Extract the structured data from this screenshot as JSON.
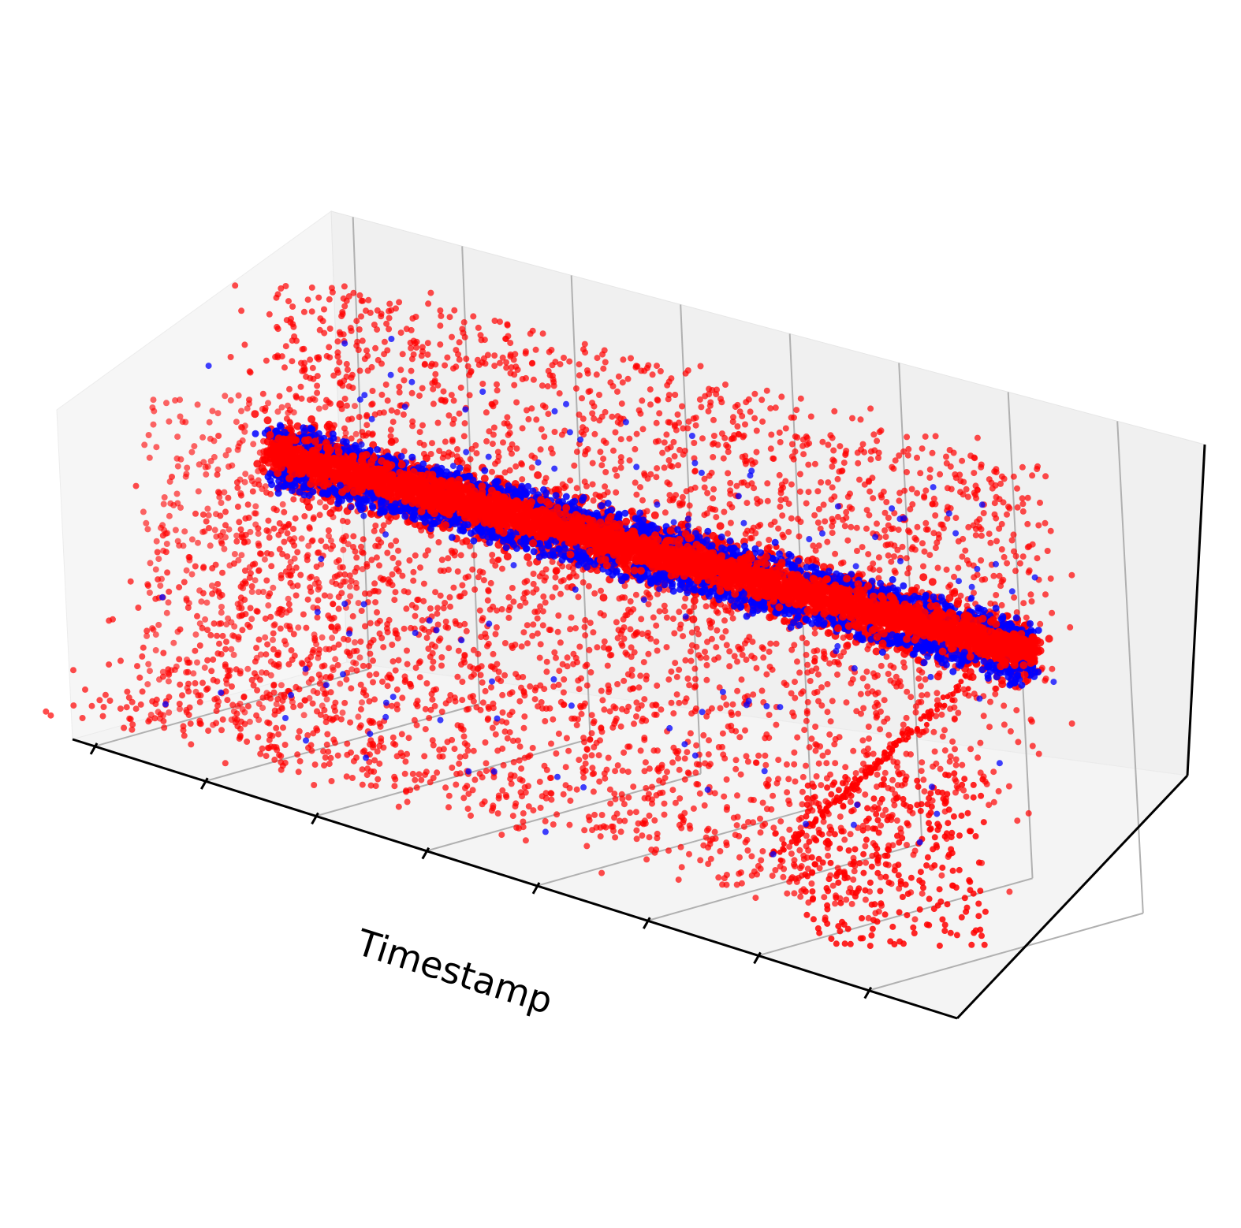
{
  "chart_data": {
    "type": "scatter",
    "projection": "3d",
    "title": "",
    "xlabel": "Timestamp",
    "ylabel": "",
    "zlabel": "",
    "tick_labels_shown": false,
    "x_tick_count": 8,
    "grid": true,
    "legend": "none",
    "colors": {
      "primary": "#ff0000",
      "secondary": "#0000ff",
      "pane_back": "#f2f2f2",
      "pane_side": "#ebebeb",
      "pane_floor": "#f5f5f5",
      "grid": "#b0b0b0"
    },
    "series": [
      {
        "color": "#ff0000",
        "point_count_estimate": 8000,
        "components": [
          {
            "kind": "dense band",
            "t_range": [
              0.02,
              0.98
            ],
            "z_center_fraction": 0.55,
            "spread": 0.06
          },
          {
            "kind": "scatter cloud",
            "t_range": [
              0.0,
              1.0
            ],
            "z_range_fraction": [
              0.25,
              0.9
            ]
          },
          {
            "kind": "diagonal trail",
            "t_range": [
              0.78,
              0.98
            ],
            "depth_fraction": [
              0.1,
              0.9
            ]
          }
        ]
      },
      {
        "color": "#0000ff",
        "point_count_estimate": 1500,
        "components": [
          {
            "kind": "dense band edges",
            "t_range": [
              0.02,
              0.98
            ],
            "z_center_fraction": 0.55
          },
          {
            "kind": "sparse scatter",
            "t_range": [
              0.0,
              1.0
            ],
            "z_range_fraction": [
              0.3,
              0.8
            ]
          }
        ]
      }
    ]
  }
}
